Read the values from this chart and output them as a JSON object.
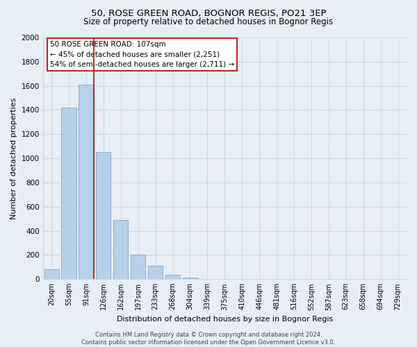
{
  "title": "50, ROSE GREEN ROAD, BOGNOR REGIS, PO21 3EP",
  "subtitle": "Size of property relative to detached houses in Bognor Regis",
  "xlabel": "Distribution of detached houses by size in Bognor Regis",
  "ylabel": "Number of detached properties",
  "bar_labels": [
    "20sqm",
    "55sqm",
    "91sqm",
    "126sqm",
    "162sqm",
    "197sqm",
    "233sqm",
    "268sqm",
    "304sqm",
    "339sqm",
    "375sqm",
    "410sqm",
    "446sqm",
    "481sqm",
    "516sqm",
    "552sqm",
    "587sqm",
    "623sqm",
    "658sqm",
    "694sqm",
    "729sqm"
  ],
  "bar_values": [
    85,
    1420,
    1610,
    1050,
    490,
    200,
    110,
    35,
    15,
    0,
    0,
    0,
    0,
    0,
    0,
    0,
    0,
    0,
    0,
    0,
    0
  ],
  "bar_color": "#b8d0e8",
  "bar_edge_color": "#7aa8cc",
  "vline_color": "#cc0000",
  "ylim": [
    0,
    2000
  ],
  "yticks": [
    0,
    200,
    400,
    600,
    800,
    1000,
    1200,
    1400,
    1600,
    1800,
    2000
  ],
  "annotation_line1": "50 ROSE GREEN ROAD: 107sqm",
  "annotation_line2": "← 45% of detached houses are smaller (2,251)",
  "annotation_line3": "54% of semi-detached houses are larger (2,711) →",
  "footer_text": "Contains HM Land Registry data © Crown copyright and database right 2024.\nContains public sector information licensed under the Open Government Licence v3.0.",
  "background_color": "#e8eef5",
  "plot_bg_color": "#e8eef5",
  "grid_color": "#c8d8e8",
  "vline_index": 2
}
